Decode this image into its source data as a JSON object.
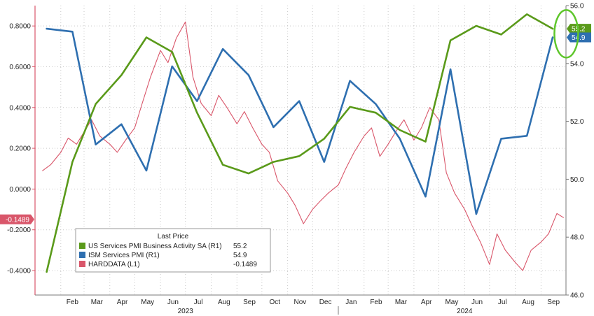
{
  "chart_data": {
    "type": "line",
    "x_axis": {
      "months": [
        "Feb",
        "Mar",
        "Apr",
        "May",
        "Jun",
        "Jul",
        "Aug",
        "Sep",
        "Oct",
        "Nov",
        "Dec",
        "Jan",
        "Feb",
        "Mar",
        "Apr",
        "May",
        "Jun",
        "Jul",
        "Aug",
        "Sep"
      ],
      "years": [
        "2023",
        "2024"
      ]
    },
    "left_axis": {
      "ticks": [
        "0.8000",
        "0.6000",
        "0.4000",
        "0.2000",
        "0.0000",
        "-0.2000",
        "-0.4000"
      ],
      "ylim": [
        -0.52,
        0.9
      ]
    },
    "right_axis": {
      "ticks": [
        "56.0",
        "54.0",
        "52.0",
        "50.0",
        "48.0",
        "46.0"
      ],
      "ylim": [
        46.0,
        56.0
      ]
    },
    "legend": {
      "title": "Last Price",
      "location": "bottom-left",
      "entries": [
        {
          "name": "US Services PMI Business Activity SA  (R1)",
          "value": "55.2",
          "color": "#5a9a1a"
        },
        {
          "name": "ISM Services PMI  (R1)",
          "value": "54.9",
          "color": "#2e6fb0"
        },
        {
          "name": "HARDDATA  (L1)",
          "value": "-0.1489",
          "color": "#d9566a"
        }
      ]
    },
    "tags": [
      {
        "text": "55.2",
        "color": "#5a9a1a",
        "axis": "right"
      },
      {
        "text": "54.9",
        "color": "#2e6fb0",
        "axis": "right"
      },
      {
        "text": "-0.1489",
        "color": "#d9566a",
        "axis": "left"
      }
    ],
    "annotation": {
      "type": "ellipse",
      "color": "#5ec62b",
      "around": "latest values"
    },
    "series": [
      {
        "name": "US Services PMI Business Activity SA",
        "axis": "right",
        "color": "#5a9a1a",
        "x": [
          "2023-01",
          "2023-02",
          "2023-03",
          "2023-04",
          "2023-05",
          "2023-06",
          "2023-07",
          "2023-08",
          "2023-09",
          "2023-10",
          "2023-11",
          "2023-12",
          "2024-01",
          "2024-02",
          "2024-03",
          "2024-04",
          "2024-05",
          "2024-06",
          "2024-07",
          "2024-08",
          "2024-09"
        ],
        "values": [
          46.8,
          50.6,
          52.6,
          53.6,
          54.9,
          54.4,
          52.3,
          50.5,
          50.2,
          50.6,
          50.8,
          51.4,
          52.5,
          52.3,
          51.7,
          51.3,
          54.8,
          55.3,
          55.0,
          55.7,
          55.2
        ]
      },
      {
        "name": "ISM Services PMI",
        "axis": "right",
        "color": "#2e6fb0",
        "x": [
          "2023-01",
          "2023-02",
          "2023-03",
          "2023-04",
          "2023-05",
          "2023-06",
          "2023-07",
          "2023-08",
          "2023-09",
          "2023-10",
          "2023-11",
          "2023-12",
          "2024-01",
          "2024-02",
          "2024-03",
          "2024-04",
          "2024-05",
          "2024-06",
          "2024-07",
          "2024-08",
          "2024-09"
        ],
        "values": [
          55.2,
          55.1,
          51.2,
          51.9,
          50.3,
          53.9,
          52.7,
          54.5,
          53.6,
          51.8,
          52.7,
          50.6,
          53.4,
          52.6,
          51.4,
          49.4,
          53.8,
          48.8,
          51.4,
          51.5,
          54.9
        ]
      },
      {
        "name": "HARDDATA",
        "axis": "left",
        "color": "#d9566a",
        "x": [
          "2023-01-10",
          "2023-01-20",
          "2023-02-01",
          "2023-02-10",
          "2023-02-20",
          "2023-03-01",
          "2023-03-10",
          "2023-03-20",
          "2023-04-01",
          "2023-04-10",
          "2023-04-20",
          "2023-05-01",
          "2023-05-10",
          "2023-05-20",
          "2023-06-01",
          "2023-06-10",
          "2023-06-20",
          "2023-07-01",
          "2023-07-10",
          "2023-07-20",
          "2023-08-01",
          "2023-08-10",
          "2023-08-20",
          "2023-09-01",
          "2023-09-10",
          "2023-09-20",
          "2023-10-01",
          "2023-10-10",
          "2023-10-20",
          "2023-11-01",
          "2023-11-10",
          "2023-11-20",
          "2023-12-01",
          "2023-12-10",
          "2023-12-20",
          "2024-01-01",
          "2024-01-10",
          "2024-01-20",
          "2024-02-01",
          "2024-02-10",
          "2024-02-20",
          "2024-03-01",
          "2024-03-10",
          "2024-03-20",
          "2024-04-01",
          "2024-04-10",
          "2024-04-20",
          "2024-05-01",
          "2024-05-10",
          "2024-05-20",
          "2024-06-01",
          "2024-06-10",
          "2024-06-20",
          "2024-07-01",
          "2024-07-10",
          "2024-07-20",
          "2024-08-01",
          "2024-08-10",
          "2024-08-20",
          "2024-09-01",
          "2024-09-10",
          "2024-09-20",
          "2024-09-28"
        ],
        "values": [
          0.09,
          0.12,
          0.18,
          0.25,
          0.22,
          0.28,
          0.34,
          0.26,
          0.22,
          0.18,
          0.24,
          0.3,
          0.42,
          0.55,
          0.68,
          0.62,
          0.74,
          0.82,
          0.55,
          0.42,
          0.36,
          0.46,
          0.4,
          0.32,
          0.38,
          0.3,
          0.22,
          0.18,
          0.04,
          -0.02,
          -0.08,
          -0.17,
          -0.1,
          -0.06,
          -0.02,
          0.02,
          0.1,
          0.18,
          0.26,
          0.3,
          0.16,
          0.22,
          0.28,
          0.34,
          0.24,
          0.3,
          0.4,
          0.34,
          0.08,
          -0.02,
          -0.1,
          -0.18,
          -0.26,
          -0.37,
          -0.22,
          -0.3,
          -0.36,
          -0.4,
          -0.3,
          -0.26,
          -0.22,
          -0.12,
          -0.14
        ]
      }
    ]
  }
}
